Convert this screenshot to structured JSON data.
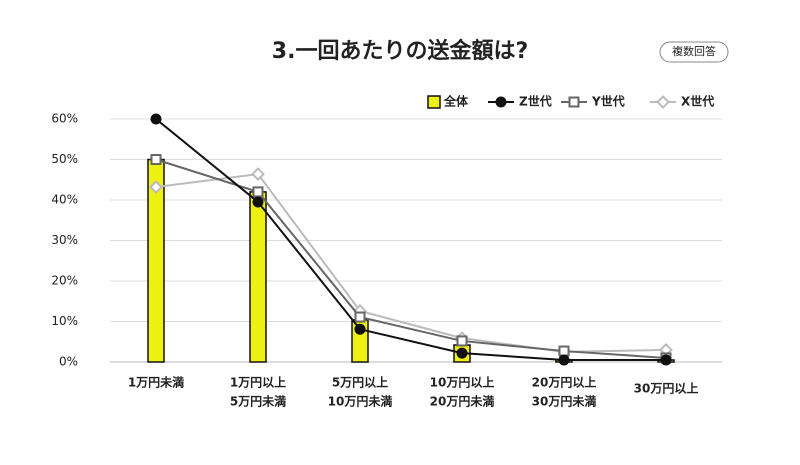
{
  "chart_data": {
    "type": "bar-line",
    "title": "3.一回あたりの送金額は?",
    "badge": "複数回答",
    "categories": [
      [
        "1万円未満"
      ],
      [
        "1万円以上",
        "5万円未満"
      ],
      [
        "5万円以上",
        "10万円未満"
      ],
      [
        "10万円以上",
        "20万円未満"
      ],
      [
        "20万円以上",
        "30万円未満"
      ],
      [
        "30万円以上"
      ]
    ],
    "series": [
      {
        "name": "全体",
        "kind": "bar",
        "color": "#eef012",
        "edgecolor": "#111111",
        "values": [
          50,
          42,
          10.4,
          4.2,
          0.5,
          0.5
        ]
      },
      {
        "name": "Z世代",
        "kind": "line",
        "marker": "circle",
        "color": "#111111",
        "values": [
          60,
          39.5,
          8.1,
          2.2,
          0.5,
          0.5
        ]
      },
      {
        "name": "Y世代",
        "kind": "line",
        "marker": "square",
        "color": "#666666",
        "values": [
          50,
          42,
          11.1,
          5.2,
          2.7,
          1
        ]
      },
      {
        "name": "X世代",
        "kind": "line",
        "marker": "diamond",
        "color": "#bbbbbb",
        "values": [
          43.2,
          46.4,
          12.6,
          5.9,
          2.5,
          3
        ]
      }
    ],
    "ylim": [
      0,
      60
    ],
    "yticks": [
      {
        "value": 0,
        "label": "0%"
      },
      {
        "value": 10,
        "label": "10%"
      },
      {
        "value": 20,
        "label": "20%"
      },
      {
        "value": 30,
        "label": "30%"
      },
      {
        "value": 40,
        "label": "40%"
      },
      {
        "value": 50,
        "label": "50%"
      },
      {
        "value": 60,
        "label": "60%"
      }
    ],
    "grid": true
  }
}
